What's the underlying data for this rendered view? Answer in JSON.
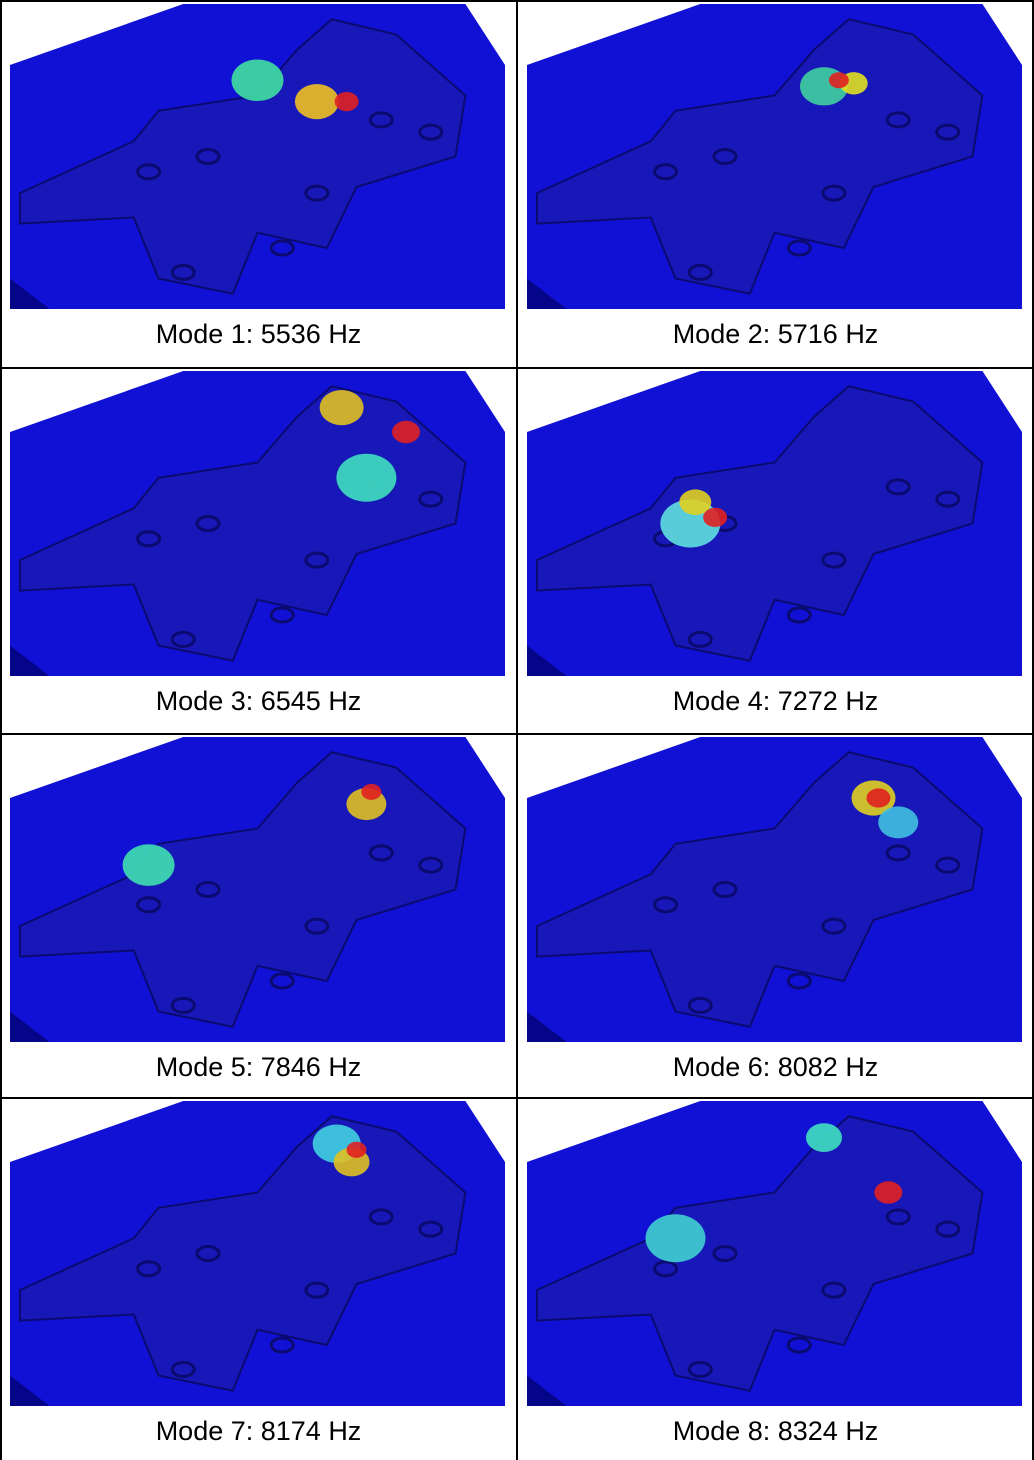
{
  "table": {
    "rows": [
      [
        {
          "caption": "Mode 1: 5536 Hz"
        },
        {
          "caption": "Mode 2: 5716 Hz"
        }
      ],
      [
        {
          "caption": "Mode 3: 6545 Hz"
        },
        {
          "caption": "Mode 4: 7272 Hz"
        }
      ],
      [
        {
          "caption": "Mode 5: 7846 Hz"
        },
        {
          "caption": "Mode 6: 8082 Hz"
        }
      ],
      [
        {
          "caption": "Mode 7: 8174 Hz"
        },
        {
          "caption": "Mode 8: 8324 Hz"
        }
      ]
    ]
  }
}
